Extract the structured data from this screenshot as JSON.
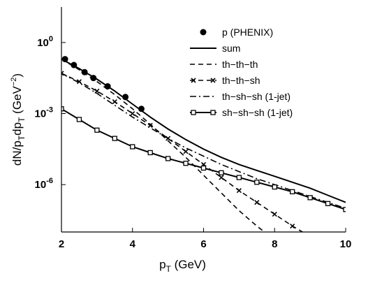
{
  "chart_data": {
    "type": "line",
    "title": "",
    "xlabel": {
      "main": "p",
      "sub": "T",
      "rest": " (GeV)"
    },
    "ylabel": {
      "p1": "dN/p",
      "s1": "T",
      "p2": "dp",
      "s2": "T",
      "p3": " (GeV",
      "sup": "−2",
      "p4": ")"
    },
    "xlim": [
      2,
      10
    ],
    "ylim_log10": [
      -8,
      1.5
    ],
    "log_y": true,
    "grid": false,
    "legend_position": "top-right",
    "x_ticks": [
      {
        "value": 2,
        "label": "2"
      },
      {
        "value": 4,
        "label": "4"
      },
      {
        "value": 6,
        "label": "6"
      },
      {
        "value": 8,
        "label": "8"
      },
      {
        "value": 10,
        "label": "10"
      }
    ],
    "y_ticks": [
      {
        "exp": 0,
        "base": "10",
        "sup": "0"
      },
      {
        "exp": -3,
        "base": "10",
        "sup": "-3"
      },
      {
        "exp": -6,
        "base": "10",
        "sup": "-6"
      }
    ],
    "series": [
      {
        "name": "p (PHENIX)",
        "style": "points",
        "x": [
          2.1,
          2.35,
          2.65,
          2.9,
          3.3,
          3.8,
          4.25
        ],
        "y_log10": [
          -0.7,
          -0.95,
          -1.25,
          -1.5,
          -1.85,
          -2.3,
          -2.8
        ]
      },
      {
        "name": "sum",
        "style": "solid",
        "x": [
          2,
          2.5,
          3,
          3.5,
          4,
          4.5,
          5,
          5.5,
          6,
          6.5,
          7,
          7.5,
          8,
          8.5,
          9,
          9.5,
          10
        ],
        "y_log10": [
          -0.7,
          -1.1,
          -1.55,
          -2.05,
          -2.6,
          -3.15,
          -3.65,
          -4.1,
          -4.5,
          -4.85,
          -5.15,
          -5.4,
          -5.65,
          -5.9,
          -6.15,
          -6.45,
          -6.75
        ]
      },
      {
        "name": "th−th−th",
        "style": "dashed",
        "x": [
          2,
          2.5,
          3,
          3.5,
          4,
          4.5,
          5,
          5.5,
          6,
          6.5,
          7,
          7.5,
          7.8
        ],
        "y_log10": [
          -0.7,
          -1.15,
          -1.65,
          -2.2,
          -2.8,
          -3.45,
          -4.15,
          -4.85,
          -5.6,
          -6.35,
          -7.1,
          -7.75,
          -8.1
        ]
      },
      {
        "name": "th−th−sh",
        "style": "dashed-cross",
        "x": [
          2,
          2.5,
          3,
          3.5,
          4,
          4.5,
          5,
          5.5,
          6,
          6.5,
          7,
          7.5,
          8,
          8.5,
          8.9
        ],
        "y_log10": [
          -1.3,
          -1.65,
          -2.05,
          -2.5,
          -3,
          -3.5,
          -4.05,
          -4.6,
          -5.15,
          -5.7,
          -6.25,
          -6.75,
          -7.25,
          -7.75,
          -8.1
        ]
      },
      {
        "name": "th−sh−sh (1-jet)",
        "style": "dash-dot",
        "x": [
          2,
          2.5,
          3,
          3.5,
          4,
          4.5,
          5,
          5.5,
          6,
          6.5,
          7,
          7.5,
          8,
          8.5,
          9,
          9.5,
          10
        ],
        "y_log10": [
          -1.3,
          -1.7,
          -2.15,
          -2.65,
          -3.15,
          -3.6,
          -4.05,
          -4.45,
          -4.8,
          -5.15,
          -5.45,
          -5.75,
          -6.0,
          -6.25,
          -6.5,
          -6.75,
          -7.0
        ]
      },
      {
        "name": "sh−sh−sh (1-jet)",
        "style": "solid-square",
        "x": [
          2,
          2.5,
          3,
          3.5,
          4,
          4.5,
          5,
          5.5,
          6,
          6.5,
          7,
          7.5,
          8,
          8.5,
          9,
          9.5,
          10
        ],
        "y_log10": [
          -2.8,
          -3.25,
          -3.7,
          -4.05,
          -4.4,
          -4.65,
          -4.9,
          -5.1,
          -5.3,
          -5.5,
          -5.7,
          -5.9,
          -6.1,
          -6.3,
          -6.55,
          -6.8,
          -7.05
        ]
      }
    ]
  }
}
